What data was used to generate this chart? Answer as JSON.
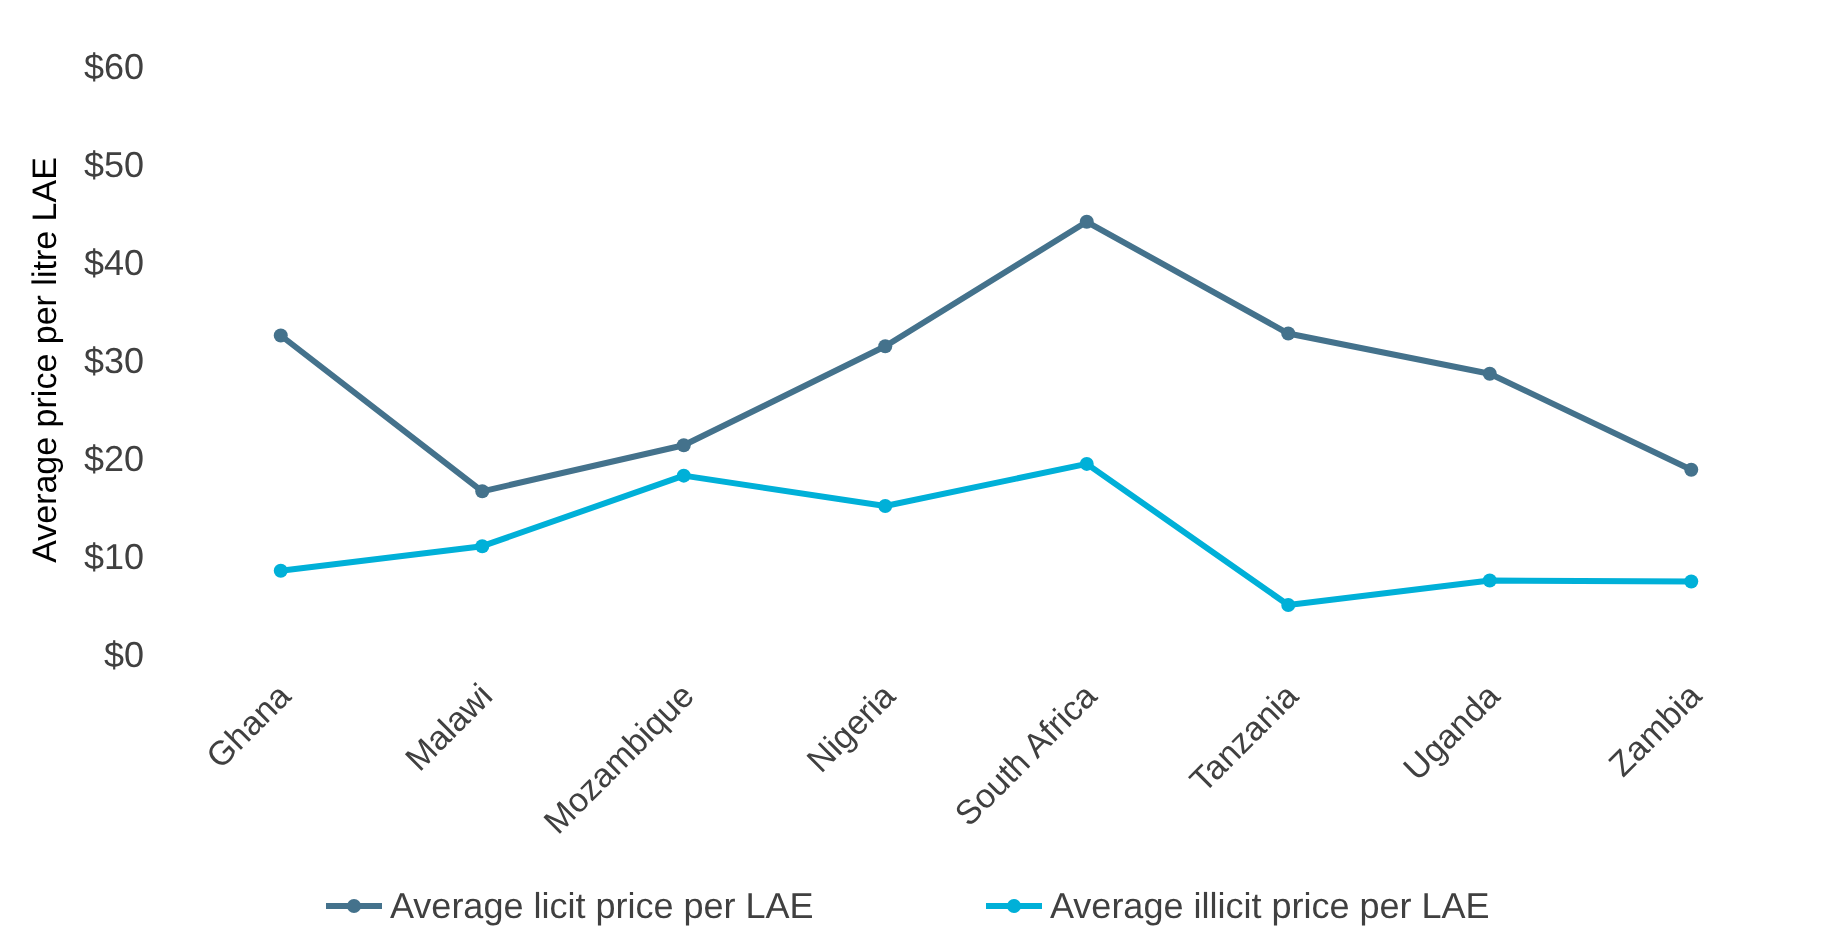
{
  "chart_data": {
    "type": "line",
    "ylabel": "Average price per litre LAE",
    "categories": [
      "Ghana",
      "Malawi",
      "Mozambique",
      "Nigeria",
      "South Africa",
      "Tanzania",
      "Uganda",
      "Zambia"
    ],
    "series": [
      {
        "name": "Average licit price per LAE",
        "color": "#44728c",
        "values": [
          32.5,
          16.6,
          21.3,
          31.4,
          44.1,
          32.7,
          28.6,
          18.8
        ]
      },
      {
        "name": "Average illicit price per LAE",
        "color": "#00b0d8",
        "values": [
          8.5,
          11.0,
          18.2,
          15.1,
          19.4,
          5.0,
          7.5,
          7.4
        ]
      }
    ],
    "ylim": [
      0,
      60
    ],
    "yticks": [
      {
        "value": 0,
        "label": "$0"
      },
      {
        "value": 10,
        "label": "$10"
      },
      {
        "value": 20,
        "label": "$20"
      },
      {
        "value": 30,
        "label": "$30"
      },
      {
        "value": 40,
        "label": "$40"
      },
      {
        "value": 50,
        "label": "$50"
      },
      {
        "value": 60,
        "label": "$60"
      }
    ],
    "grid": false,
    "legend": "bottom",
    "marker": "circle",
    "line_style": "solid"
  }
}
